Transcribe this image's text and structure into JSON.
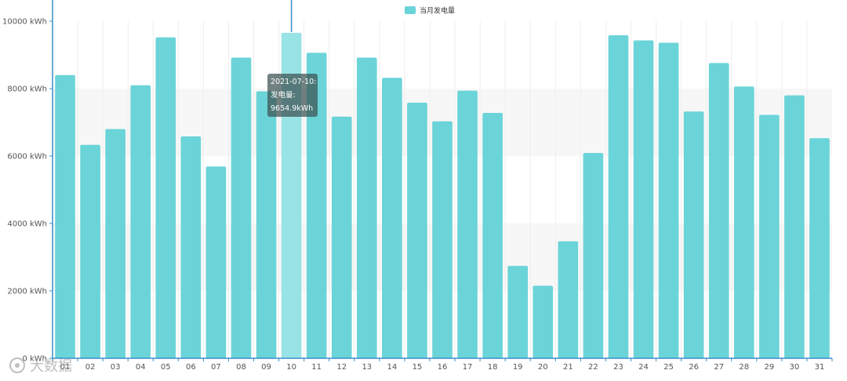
{
  "chart_data": {
    "type": "bar",
    "categories": [
      "01",
      "02",
      "03",
      "04",
      "05",
      "06",
      "07",
      "08",
      "09",
      "10",
      "11",
      "12",
      "13",
      "14",
      "15",
      "16",
      "17",
      "18",
      "19",
      "20",
      "21",
      "22",
      "23",
      "24",
      "25",
      "26",
      "27",
      "28",
      "29",
      "30",
      "31"
    ],
    "series": [
      {
        "name": "当月发电量",
        "values": [
          8400,
          6330,
          6800,
          8100,
          9520,
          6580,
          5690,
          8920,
          7920,
          9654.9,
          9060,
          7170,
          8920,
          8320,
          7580,
          7030,
          7940,
          7280,
          2740,
          2150,
          3470,
          6090,
          9580,
          9430,
          9360,
          7320,
          8760,
          8060,
          7220,
          7800,
          6530
        ]
      }
    ],
    "ylim": [
      0,
      10000
    ],
    "yticks": [
      "0 kWh",
      "2000 kWh",
      "4000 kWh",
      "6000 kWh",
      "8000 kWh",
      "10000 kWh"
    ],
    "ytick_values": [
      0,
      2000,
      4000,
      6000,
      8000,
      10000
    ],
    "legend_position": "top-center",
    "colors": {
      "bar": "#6bd4d8",
      "bar_highlight": "#98e3e5",
      "axis": "#3a8fc9"
    },
    "highlight_index": 9
  },
  "tooltip": {
    "line1": "2021-07-10:",
    "line2": "发电量:",
    "line3": "9654.9kWh"
  },
  "watermark": "大数据"
}
